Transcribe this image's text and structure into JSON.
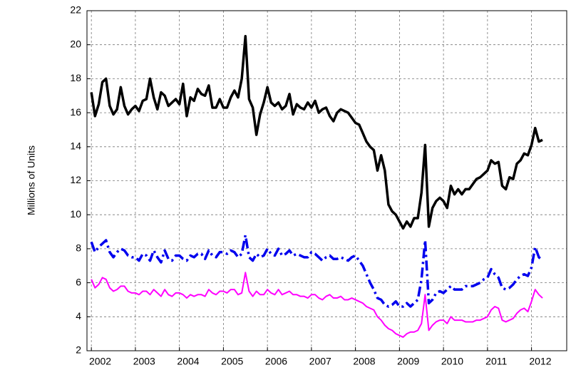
{
  "chart_data": {
    "type": "line",
    "y_label": "Millions of Units",
    "xlim": [
      2001.9,
      2012.8
    ],
    "ylim": [
      2,
      22
    ],
    "xticks": [
      2002,
      2003,
      2004,
      2005,
      2006,
      2007,
      2008,
      2009,
      2010,
      2011,
      2012
    ],
    "yticks": [
      2,
      4,
      6,
      8,
      10,
      12,
      14,
      16,
      18,
      20,
      22
    ],
    "grid": true,
    "x": [
      2002.0,
      2002.083,
      2002.167,
      2002.25,
      2002.333,
      2002.417,
      2002.5,
      2002.583,
      2002.667,
      2002.75,
      2002.833,
      2002.917,
      2003.0,
      2003.083,
      2003.167,
      2003.25,
      2003.333,
      2003.417,
      2003.5,
      2003.583,
      2003.667,
      2003.75,
      2003.833,
      2003.917,
      2004.0,
      2004.083,
      2004.167,
      2004.25,
      2004.333,
      2004.417,
      2004.5,
      2004.583,
      2004.667,
      2004.75,
      2004.833,
      2004.917,
      2005.0,
      2005.083,
      2005.167,
      2005.25,
      2005.333,
      2005.417,
      2005.5,
      2005.583,
      2005.667,
      2005.75,
      2005.833,
      2005.917,
      2006.0,
      2006.083,
      2006.167,
      2006.25,
      2006.333,
      2006.417,
      2006.5,
      2006.583,
      2006.667,
      2006.75,
      2006.833,
      2006.917,
      2007.0,
      2007.083,
      2007.167,
      2007.25,
      2007.333,
      2007.417,
      2007.5,
      2007.583,
      2007.667,
      2007.75,
      2007.833,
      2007.917,
      2008.0,
      2008.083,
      2008.167,
      2008.25,
      2008.333,
      2008.417,
      2008.5,
      2008.583,
      2008.667,
      2008.75,
      2008.833,
      2008.917,
      2009.0,
      2009.083,
      2009.167,
      2009.25,
      2009.333,
      2009.417,
      2009.5,
      2009.583,
      2009.667,
      2009.75,
      2009.833,
      2009.917,
      2010.0,
      2010.083,
      2010.167,
      2010.25,
      2010.333,
      2010.417,
      2010.5,
      2010.583,
      2010.667,
      2010.75,
      2010.833,
      2010.917,
      2011.0,
      2011.083,
      2011.167,
      2011.25,
      2011.333,
      2011.417,
      2011.5,
      2011.583,
      2011.667,
      2011.75,
      2011.833,
      2011.917,
      2012.0,
      2012.083,
      2012.167,
      2012.25
    ],
    "series": [
      {
        "color": "#000000",
        "line_style": "solid",
        "width": 3.5,
        "values": [
          17.2,
          15.8,
          16.5,
          17.8,
          18.0,
          16.4,
          15.9,
          16.2,
          17.5,
          16.4,
          15.9,
          16.2,
          16.4,
          16.1,
          16.7,
          16.8,
          18.0,
          16.9,
          16.2,
          17.2,
          17.0,
          16.4,
          16.6,
          16.8,
          16.5,
          17.7,
          15.8,
          16.9,
          16.7,
          17.4,
          17.1,
          17.0,
          17.6,
          16.3,
          16.3,
          16.8,
          16.3,
          16.3,
          16.9,
          17.3,
          16.9,
          18.0,
          20.5,
          16.8,
          16.3,
          14.7,
          15.9,
          16.6,
          17.5,
          16.6,
          16.4,
          16.6,
          16.2,
          16.4,
          17.1,
          15.9,
          16.5,
          16.3,
          16.2,
          16.6,
          16.3,
          16.7,
          16.0,
          16.2,
          16.3,
          15.8,
          15.5,
          16.0,
          16.2,
          16.1,
          16.0,
          15.7,
          15.4,
          15.3,
          14.8,
          14.3,
          14.0,
          13.8,
          12.6,
          13.5,
          12.6,
          10.6,
          10.2,
          10.0,
          9.6,
          9.2,
          9.6,
          9.3,
          9.8,
          9.8,
          11.3,
          14.1,
          9.3,
          10.4,
          10.8,
          11.0,
          10.8,
          10.4,
          11.7,
          11.2,
          11.5,
          11.2,
          11.5,
          11.5,
          11.8,
          12.1,
          12.2,
          12.4,
          12.6,
          13.2,
          13.0,
          13.1,
          11.7,
          11.5,
          12.2,
          12.1,
          13.0,
          13.2,
          13.6,
          13.5,
          14.1,
          15.1,
          14.3,
          14.4
        ]
      },
      {
        "color": "#0000ee",
        "line_style": "dash-dot",
        "width": 3.5,
        "values": [
          8.4,
          7.8,
          8.1,
          8.3,
          8.5,
          7.8,
          7.5,
          7.8,
          8.0,
          7.9,
          7.6,
          7.5,
          7.5,
          7.3,
          7.7,
          7.6,
          7.3,
          7.9,
          7.5,
          7.2,
          7.9,
          7.4,
          7.3,
          7.6,
          7.6,
          7.4,
          7.3,
          7.6,
          7.5,
          7.7,
          7.7,
          7.4,
          7.9,
          7.6,
          7.5,
          7.8,
          7.8,
          7.7,
          7.9,
          7.8,
          7.5,
          7.7,
          8.8,
          7.5,
          7.3,
          7.7,
          7.5,
          7.6,
          8.0,
          7.7,
          7.6,
          8.0,
          7.6,
          7.7,
          7.9,
          7.6,
          7.7,
          7.6,
          7.5,
          7.5,
          7.8,
          7.7,
          7.5,
          7.3,
          7.5,
          7.6,
          7.4,
          7.4,
          7.5,
          7.4,
          7.3,
          7.5,
          7.6,
          7.3,
          7.0,
          6.5,
          6.0,
          5.6,
          5.1,
          5.0,
          4.7,
          4.6,
          4.7,
          4.9,
          4.6,
          4.6,
          4.8,
          4.6,
          4.8,
          5.0,
          6.2,
          8.5,
          4.8,
          5.0,
          5.4,
          5.5,
          5.4,
          5.6,
          5.8,
          5.6,
          5.6,
          5.6,
          5.8,
          5.8,
          5.8,
          5.9,
          6.0,
          6.2,
          6.3,
          6.8,
          6.5,
          6.3,
          5.7,
          5.6,
          5.7,
          5.9,
          6.2,
          6.4,
          6.5,
          6.4,
          6.9,
          8.1,
          7.5,
          7.3
        ]
      },
      {
        "color": "#ff00ff",
        "line_style": "solid",
        "width": 2,
        "values": [
          6.2,
          5.7,
          5.9,
          6.3,
          6.2,
          5.7,
          5.5,
          5.6,
          5.8,
          5.8,
          5.5,
          5.4,
          5.4,
          5.3,
          5.5,
          5.5,
          5.3,
          5.6,
          5.4,
          5.2,
          5.6,
          5.3,
          5.2,
          5.4,
          5.4,
          5.3,
          5.1,
          5.3,
          5.2,
          5.3,
          5.3,
          5.2,
          5.6,
          5.4,
          5.3,
          5.5,
          5.5,
          5.4,
          5.6,
          5.6,
          5.3,
          5.4,
          6.6,
          5.5,
          5.2,
          5.5,
          5.3,
          5.3,
          5.6,
          5.4,
          5.3,
          5.6,
          5.3,
          5.4,
          5.5,
          5.3,
          5.3,
          5.2,
          5.2,
          5.1,
          5.3,
          5.3,
          5.1,
          5.0,
          5.2,
          5.3,
          5.1,
          5.1,
          5.2,
          5.0,
          5.0,
          5.1,
          5.0,
          4.9,
          4.8,
          4.6,
          4.5,
          4.4,
          4.0,
          3.8,
          3.5,
          3.3,
          3.2,
          3.0,
          2.9,
          2.8,
          3.0,
          3.1,
          3.1,
          3.2,
          3.6,
          5.3,
          3.2,
          3.5,
          3.7,
          3.8,
          3.8,
          3.6,
          4.0,
          3.8,
          3.8,
          3.8,
          3.7,
          3.7,
          3.7,
          3.8,
          3.8,
          3.9,
          4.0,
          4.4,
          4.6,
          4.5,
          3.8,
          3.7,
          3.8,
          3.9,
          4.2,
          4.4,
          4.5,
          4.3,
          4.9,
          5.6,
          5.3,
          5.1
        ]
      }
    ]
  }
}
